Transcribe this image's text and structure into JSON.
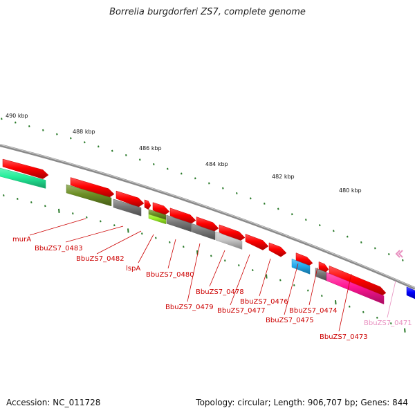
{
  "title": "Borrelia burgdorferi ZS7, complete genome",
  "footer": {
    "accession": "Accession: NC_011728",
    "summary": "Topology: circular; Length: 906,707 bp; Genes: 844"
  },
  "colors": {
    "backbone": "#8a8a8a",
    "tick": "#2a7a2a",
    "label": "#cc0000",
    "label_faded": "#e890c0",
    "gene_red": "#ff0000",
    "gene_olive": "#6b8e23",
    "gene_grey": "#777777",
    "gene_lightgrey": "#c8c8c8",
    "gene_lime": "#99ee22",
    "gene_cyan": "#22aaee",
    "gene_teal": "#22ee99",
    "gene_pink": "#ff1493",
    "gene_blue": "#0000ff"
  },
  "scale_labels": [
    "490 kbp",
    "488 kbp",
    "486 kbp",
    "484 kbp",
    "482 kbp",
    "480 kbp"
  ],
  "gene_labels": [
    "murA",
    "BbuZS7_0483",
    "BbuZS7_0482",
    "lspA",
    "BbuZS7_0480",
    "BbuZS7_0479",
    "BbuZS7_0478",
    "BbuZS7_0477",
    "BbuZS7_0476",
    "BbuZS7_0475",
    "BbuZS7_0474",
    "BbuZS7_0473",
    "BbuZS7_0471"
  ]
}
